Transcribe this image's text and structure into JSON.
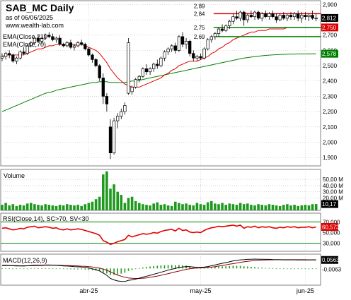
{
  "header": {
    "title": "SAB_MC Daily",
    "asof": "as of 06/06/2025",
    "site": "www.wealth-lab.com"
  },
  "colors": {
    "background": "#ffffff",
    "grid": "#c0c0c0",
    "candle_border": "#000000",
    "candle_up": "#ffffff",
    "candle_down": "#000000",
    "ema21": "#e00000",
    "ema70": "#008000",
    "hline_red": "#e00000",
    "hline_green": "#008000",
    "volume_bar": "#1f9a1f",
    "rsi_line": "#e00000",
    "rsi_bound": "#008000",
    "macd_line": "#000000",
    "macd_signal": "#8b0000",
    "macd_hist": "#1f9a1f",
    "price_tag_black": "#000000",
    "price_tag_red": "#e00000",
    "price_tag_green": "#008000"
  },
  "chart_data": [
    {
      "type": "candlestick",
      "title": "SAB_MC Daily",
      "legend": [
        "EMA(Close,21)",
        "EMA(Close,70)"
      ],
      "x_labels": [
        "abr-25",
        "may-25",
        "jun-25"
      ],
      "x_label_index": [
        24,
        55,
        84
      ],
      "ylim": [
        1.85,
        2.92
      ],
      "y_ticks": [
        1.9,
        2.0,
        2.1,
        2.2,
        2.3,
        2.4,
        2.5,
        2.6,
        2.7,
        2.8,
        2.9
      ],
      "y_tick_labels": [
        "1,900",
        "2,000",
        "2,100",
        "2,200",
        "2,300",
        "2,400",
        "2,500",
        "2,600",
        "2,700",
        "2,800",
        "2,900"
      ],
      "price_tags": [
        {
          "label": "2,812",
          "value": 2.812,
          "color": "black"
        },
        {
          "label": "2,750",
          "value": 2.75,
          "color": "red"
        },
        {
          "label": "2,578",
          "value": 2.578,
          "color": "green"
        }
      ],
      "hlines": [
        {
          "label": "2,89",
          "value": 2.89,
          "color": "none",
          "from": 59,
          "to": 88
        },
        {
          "label": "2,84",
          "value": 2.84,
          "color": "red",
          "from": 59,
          "to": 88
        },
        {
          "label": "2,75",
          "value": 2.75,
          "color": "green",
          "from": 59,
          "to": 88
        },
        {
          "label": "2,69",
          "value": 2.69,
          "color": "green",
          "from": 59,
          "to": 88
        }
      ],
      "candles": [
        [
          2.55,
          2.58,
          2.53,
          2.56
        ],
        [
          2.56,
          2.59,
          2.54,
          2.58
        ],
        [
          2.58,
          2.6,
          2.55,
          2.57
        ],
        [
          2.57,
          2.58,
          2.52,
          2.53
        ],
        [
          2.53,
          2.56,
          2.51,
          2.55
        ],
        [
          2.55,
          2.6,
          2.54,
          2.59
        ],
        [
          2.59,
          2.62,
          2.57,
          2.58
        ],
        [
          2.58,
          2.64,
          2.57,
          2.63
        ],
        [
          2.63,
          2.66,
          2.62,
          2.65
        ],
        [
          2.65,
          2.69,
          2.64,
          2.68
        ],
        [
          2.68,
          2.7,
          2.65,
          2.66
        ],
        [
          2.66,
          2.69,
          2.64,
          2.68
        ],
        [
          2.68,
          2.71,
          2.67,
          2.7
        ],
        [
          2.7,
          2.72,
          2.68,
          2.69
        ],
        [
          2.69,
          2.71,
          2.66,
          2.67
        ],
        [
          2.67,
          2.69,
          2.65,
          2.68
        ],
        [
          2.68,
          2.7,
          2.63,
          2.64
        ],
        [
          2.64,
          2.65,
          2.62,
          2.63
        ],
        [
          2.63,
          2.66,
          2.62,
          2.65
        ],
        [
          2.65,
          2.67,
          2.61,
          2.62
        ],
        [
          2.62,
          2.64,
          2.6,
          2.63
        ],
        [
          2.63,
          2.66,
          2.62,
          2.65
        ],
        [
          2.65,
          2.67,
          2.63,
          2.64
        ],
        [
          2.64,
          2.65,
          2.6,
          2.61
        ],
        [
          2.61,
          2.62,
          2.56,
          2.57
        ],
        [
          2.57,
          2.58,
          2.52,
          2.54
        ],
        [
          2.54,
          2.55,
          2.49,
          2.5
        ],
        [
          2.5,
          2.51,
          2.4,
          2.42
        ],
        [
          2.42,
          2.45,
          2.25,
          2.3
        ],
        [
          2.3,
          2.32,
          2.2,
          2.25
        ],
        [
          2.1,
          2.15,
          1.89,
          1.93
        ],
        [
          1.93,
          2.16,
          1.92,
          2.14
        ],
        [
          2.14,
          2.19,
          2.09,
          2.17
        ],
        [
          2.17,
          2.22,
          2.15,
          2.2
        ],
        [
          2.2,
          2.26,
          2.18,
          2.24
        ],
        [
          2.32,
          2.68,
          2.31,
          2.65
        ],
        [
          2.33,
          2.37,
          2.31,
          2.36
        ],
        [
          2.36,
          2.42,
          2.35,
          2.41
        ],
        [
          2.41,
          2.44,
          2.39,
          2.43
        ],
        [
          2.43,
          2.49,
          2.42,
          2.48
        ],
        [
          2.48,
          2.51,
          2.44,
          2.46
        ],
        [
          2.46,
          2.49,
          2.44,
          2.48
        ],
        [
          2.48,
          2.52,
          2.46,
          2.51
        ],
        [
          2.51,
          2.54,
          2.48,
          2.5
        ],
        [
          2.5,
          2.56,
          2.49,
          2.55
        ],
        [
          2.55,
          2.6,
          2.53,
          2.59
        ],
        [
          2.59,
          2.62,
          2.57,
          2.61
        ],
        [
          2.61,
          2.64,
          2.59,
          2.63
        ],
        [
          2.63,
          2.65,
          2.58,
          2.6
        ],
        [
          2.6,
          2.7,
          2.59,
          2.69
        ],
        [
          2.69,
          2.72,
          2.62,
          2.64
        ],
        [
          2.64,
          2.68,
          2.61,
          2.66
        ],
        [
          2.66,
          2.67,
          2.56,
          2.58
        ],
        [
          2.58,
          2.6,
          2.53,
          2.55
        ],
        [
          2.55,
          2.57,
          2.53,
          2.56
        ],
        [
          2.56,
          2.58,
          2.54,
          2.55
        ],
        [
          2.55,
          2.62,
          2.54,
          2.61
        ],
        [
          2.61,
          2.68,
          2.6,
          2.67
        ],
        [
          2.67,
          2.7,
          2.65,
          2.69
        ],
        [
          2.69,
          2.72,
          2.67,
          2.71
        ],
        [
          2.71,
          2.75,
          2.69,
          2.74
        ],
        [
          2.74,
          2.77,
          2.72,
          2.73
        ],
        [
          2.73,
          2.77,
          2.72,
          2.76
        ],
        [
          2.76,
          2.8,
          2.74,
          2.79
        ],
        [
          2.79,
          2.84,
          2.77,
          2.82
        ],
        [
          2.82,
          2.86,
          2.8,
          2.81
        ],
        [
          2.81,
          2.86,
          2.79,
          2.85
        ],
        [
          2.85,
          2.86,
          2.76,
          2.8
        ],
        [
          2.8,
          2.84,
          2.78,
          2.83
        ],
        [
          2.83,
          2.86,
          2.81,
          2.82
        ],
        [
          2.82,
          2.86,
          2.8,
          2.85
        ],
        [
          2.85,
          2.86,
          2.8,
          2.81
        ],
        [
          2.81,
          2.85,
          2.79,
          2.84
        ],
        [
          2.84,
          2.86,
          2.81,
          2.82
        ],
        [
          2.82,
          2.85,
          2.8,
          2.84
        ],
        [
          2.84,
          2.86,
          2.81,
          2.82
        ],
        [
          2.82,
          2.84,
          2.78,
          2.8
        ],
        [
          2.8,
          2.84,
          2.79,
          2.83
        ],
        [
          2.83,
          2.85,
          2.8,
          2.81
        ],
        [
          2.81,
          2.84,
          2.79,
          2.83
        ],
        [
          2.83,
          2.85,
          2.8,
          2.82
        ],
        [
          2.82,
          2.85,
          2.8,
          2.84
        ],
        [
          2.84,
          2.86,
          2.79,
          2.81
        ],
        [
          2.81,
          2.85,
          2.78,
          2.83
        ],
        [
          2.83,
          2.85,
          2.8,
          2.82
        ],
        [
          2.82,
          2.84,
          2.79,
          2.83
        ],
        [
          2.83,
          2.86,
          2.8,
          2.81
        ],
        [
          2.81,
          2.84,
          2.79,
          2.812
        ]
      ],
      "ema21": [
        2.56,
        2.57,
        2.57,
        2.57,
        2.57,
        2.57,
        2.57,
        2.58,
        2.59,
        2.6,
        2.61,
        2.61,
        2.62,
        2.63,
        2.63,
        2.64,
        2.64,
        2.64,
        2.64,
        2.64,
        2.64,
        2.64,
        2.64,
        2.63,
        2.62,
        2.61,
        2.6,
        2.58,
        2.55,
        2.52,
        2.48,
        2.45,
        2.42,
        2.4,
        2.38,
        2.37,
        2.36,
        2.36,
        2.36,
        2.37,
        2.38,
        2.39,
        2.4,
        2.41,
        2.42,
        2.44,
        2.45,
        2.47,
        2.48,
        2.5,
        2.51,
        2.52,
        2.53,
        2.53,
        2.53,
        2.54,
        2.55,
        2.56,
        2.58,
        2.59,
        2.61,
        2.62,
        2.64,
        2.65,
        2.67,
        2.68,
        2.69,
        2.7,
        2.71,
        2.72,
        2.72,
        2.73,
        2.73,
        2.73,
        2.74,
        2.74,
        2.74,
        2.74,
        2.74,
        2.75,
        2.75,
        2.75,
        2.75,
        2.75,
        2.75,
        2.75,
        2.75,
        2.75
      ],
      "ema70": [
        2.2,
        2.21,
        2.22,
        2.23,
        2.24,
        2.25,
        2.26,
        2.27,
        2.28,
        2.29,
        2.3,
        2.31,
        2.32,
        2.325,
        2.33,
        2.34,
        2.345,
        2.35,
        2.355,
        2.36,
        2.365,
        2.37,
        2.375,
        2.38,
        2.385,
        2.39,
        2.39,
        2.395,
        2.395,
        2.395,
        2.39,
        2.39,
        2.39,
        2.39,
        2.39,
        2.395,
        2.4,
        2.4,
        2.405,
        2.41,
        2.415,
        2.42,
        2.425,
        2.43,
        2.435,
        2.44,
        2.445,
        2.45,
        2.455,
        2.46,
        2.465,
        2.47,
        2.475,
        2.48,
        2.485,
        2.49,
        2.495,
        2.5,
        2.505,
        2.51,
        2.515,
        2.52,
        2.525,
        2.53,
        2.535,
        2.54,
        2.545,
        2.55,
        2.553,
        2.556,
        2.559,
        2.562,
        2.565,
        2.567,
        2.569,
        2.571,
        2.572,
        2.573,
        2.574,
        2.575,
        2.576,
        2.576,
        2.577,
        2.577,
        2.577,
        2.578,
        2.578,
        2.578
      ]
    },
    {
      "type": "bar",
      "title": "Volume",
      "ylim": [
        0,
        65
      ],
      "y_tick_labels": [
        "50,00 M",
        "40,00 M",
        "30,00 M",
        "20,00 M"
      ],
      "y_tick_values": [
        50,
        40,
        30,
        20
      ],
      "last_label": "10,17 M",
      "values": [
        9,
        12,
        8,
        10,
        7,
        9,
        8,
        11,
        12,
        10,
        9,
        8,
        10,
        9,
        8,
        7,
        9,
        8,
        10,
        9,
        8,
        9,
        7,
        10,
        12,
        14,
        18,
        22,
        58,
        63,
        35,
        42,
        30,
        25,
        12,
        20,
        22,
        15,
        12,
        10,
        9,
        8,
        11,
        13,
        9,
        10,
        8,
        7,
        14,
        12,
        10,
        11,
        9,
        8,
        12,
        10,
        9,
        13,
        15,
        11,
        10,
        12,
        9,
        11,
        10,
        9,
        12,
        10,
        11,
        9,
        8,
        10,
        9,
        8,
        10,
        9,
        8,
        7,
        9,
        10,
        8,
        9,
        7,
        8,
        9,
        8,
        10,
        10.17
      ]
    },
    {
      "type": "line",
      "title": "RSI(Close,14), SC>70, SV<30",
      "ylim": [
        15,
        85
      ],
      "upper_bound": 70,
      "lower_bound": 30,
      "y_tick_labels": [
        "70,000",
        "50,000",
        "30,000"
      ],
      "y_tick_values": [
        70,
        50,
        30
      ],
      "last_label": "60,5730",
      "values": [
        58,
        59,
        57,
        55,
        56,
        58,
        57,
        60,
        61,
        62,
        59,
        60,
        61,
        60,
        58,
        59,
        56,
        55,
        57,
        55,
        56,
        57,
        56,
        54,
        52,
        50,
        48,
        45,
        35,
        32,
        28,
        30,
        33,
        35,
        37,
        45,
        42,
        44,
        46,
        48,
        47,
        48,
        50,
        49,
        52,
        54,
        55,
        56,
        53,
        58,
        54,
        55,
        51,
        50,
        51,
        50,
        54,
        57,
        59,
        60,
        62,
        61,
        62,
        63,
        64,
        62,
        64,
        58,
        61,
        60,
        62,
        59,
        61,
        60,
        61,
        59,
        58,
        60,
        59,
        61,
        60,
        61,
        59,
        60,
        60,
        61,
        59,
        60.573
      ]
    },
    {
      "type": "line",
      "title": "MACD(12,26,9)",
      "ylim": [
        -0.11,
        0.09
      ],
      "y_tick_labels": [
        "0,0563",
        "-0,0063"
      ],
      "y_tick_values": [
        0.0563,
        -0.0063
      ],
      "macd": [
        0.02,
        0.021,
        0.02,
        0.018,
        0.017,
        0.017,
        0.016,
        0.018,
        0.02,
        0.022,
        0.022,
        0.022,
        0.023,
        0.023,
        0.022,
        0.021,
        0.019,
        0.017,
        0.016,
        0.014,
        0.012,
        0.011,
        0.01,
        0.007,
        0.003,
        -0.002,
        -0.008,
        -0.016,
        -0.03,
        -0.045,
        -0.066,
        -0.075,
        -0.082,
        -0.085,
        -0.086,
        -0.078,
        -0.075,
        -0.07,
        -0.064,
        -0.057,
        -0.051,
        -0.045,
        -0.038,
        -0.032,
        -0.025,
        -0.018,
        -0.011,
        -0.005,
        0.0,
        0.007,
        0.01,
        0.013,
        0.012,
        0.01,
        0.008,
        0.007,
        0.009,
        0.013,
        0.018,
        0.023,
        0.029,
        0.034,
        0.039,
        0.044,
        0.05,
        0.053,
        0.057,
        0.058,
        0.06,
        0.061,
        0.062,
        0.061,
        0.061,
        0.06,
        0.06,
        0.059,
        0.058,
        0.058,
        0.057,
        0.057,
        0.057,
        0.057,
        0.056,
        0.056,
        0.056,
        0.056,
        0.0563,
        0.0563
      ],
      "signal": [
        0.018,
        0.019,
        0.019,
        0.019,
        0.019,
        0.018,
        0.018,
        0.018,
        0.018,
        0.019,
        0.02,
        0.02,
        0.021,
        0.021,
        0.021,
        0.021,
        0.021,
        0.02,
        0.019,
        0.019,
        0.018,
        0.017,
        0.015,
        0.014,
        0.012,
        0.01,
        0.006,
        0.002,
        -0.004,
        -0.012,
        -0.022,
        -0.033,
        -0.043,
        -0.051,
        -0.058,
        -0.062,
        -0.065,
        -0.066,
        -0.066,
        -0.064,
        -0.062,
        -0.058,
        -0.054,
        -0.05,
        -0.045,
        -0.039,
        -0.034,
        -0.028,
        -0.022,
        -0.017,
        -0.011,
        -0.006,
        -0.002,
        0.001,
        0.003,
        0.004,
        0.005,
        0.007,
        0.009,
        0.012,
        0.016,
        0.02,
        0.024,
        0.028,
        0.032,
        0.036,
        0.04,
        0.044,
        0.047,
        0.05,
        0.052,
        0.054,
        0.055,
        0.056,
        0.057,
        0.057,
        0.058,
        0.058,
        0.058,
        0.058,
        0.058,
        0.058,
        0.058,
        0.058,
        0.058,
        0.057,
        0.0575,
        0.0573
      ],
      "hist": [
        0.002,
        0.002,
        0.001,
        -0.001,
        -0.002,
        -0.001,
        -0.002,
        0.0,
        0.002,
        0.003,
        0.002,
        0.002,
        0.002,
        0.002,
        0.001,
        0.0,
        -0.002,
        -0.003,
        -0.003,
        -0.005,
        -0.006,
        -0.006,
        -0.005,
        -0.007,
        -0.009,
        -0.012,
        -0.014,
        -0.018,
        -0.026,
        -0.033,
        -0.044,
        -0.042,
        -0.039,
        -0.034,
        -0.028,
        -0.016,
        -0.01,
        -0.004,
        0.002,
        0.007,
        0.011,
        0.013,
        0.016,
        0.018,
        0.02,
        0.021,
        0.023,
        0.023,
        0.022,
        0.024,
        0.021,
        0.019,
        0.014,
        0.009,
        0.005,
        0.003,
        0.004,
        0.006,
        0.009,
        0.011,
        0.013,
        0.014,
        0.015,
        0.016,
        0.018,
        0.017,
        0.017,
        0.014,
        0.013,
        0.011,
        0.01,
        0.007,
        0.006,
        0.004,
        0.003,
        0.002,
        0.0,
        0.0,
        -0.001,
        -0.001,
        -0.001,
        -0.001,
        -0.002,
        -0.002,
        -0.002,
        -0.001,
        -0.002,
        -0.001
      ]
    }
  ]
}
